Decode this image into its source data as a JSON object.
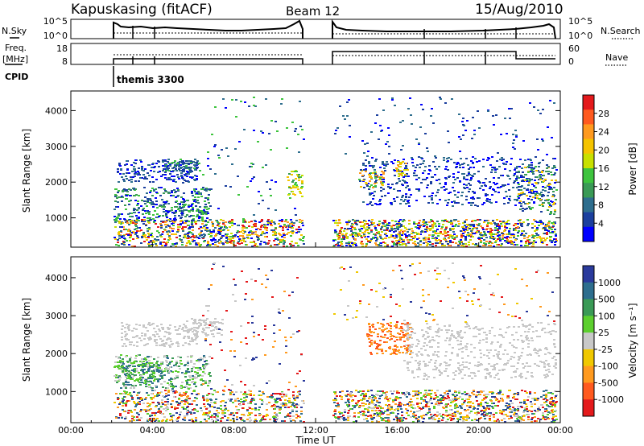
{
  "header": {
    "station": "Kapuskasing (fitACF)",
    "beam": "Beam 12",
    "date": "15/Aug/2010"
  },
  "panel_labels": {
    "nsky": "N.Sky",
    "freq_line1": "Freq.",
    "freq_line2": "[MHz]",
    "cpid": "CPID",
    "nsearch": "N.Search",
    "nave": "Nave",
    "cpid_value": "themis 3300"
  },
  "colorbars": {
    "power": {
      "label": "Power [dB]",
      "ticks": [
        "28",
        "24",
        "20",
        "16",
        "12",
        "8",
        "4"
      ],
      "colors": [
        "#e41a1c",
        "#ff5a1f",
        "#ff9a1f",
        "#f5c400",
        "#c8e000",
        "#3ec43e",
        "#3a9a56",
        "#2e6e8e",
        "#1b3f9e",
        "#0000ff"
      ]
    },
    "velocity": {
      "label": "Velocity [m s⁻¹]",
      "ticks": [
        "1000",
        "500",
        "100",
        "25",
        "-25",
        "-100",
        "-500",
        "-1000"
      ],
      "colors": [
        "#2a3a9c",
        "#2e6e8e",
        "#3a9a56",
        "#5ccf2e",
        "#c8c8c8",
        "#f0c800",
        "#ff9a1f",
        "#ff5a1f",
        "#e41a1c"
      ]
    }
  },
  "chart_data": [
    {
      "type": "line",
      "title": "N.Sky / N.Search",
      "x_range_hours": [
        0,
        24
      ],
      "y_tick_labels_left": [
        "10^5",
        "10^0"
      ],
      "y_tick_labels_right": [
        "10^5",
        "10^0"
      ],
      "gaps": [
        [
          0,
          2.0
        ],
        [
          11.5,
          12.9
        ]
      ]
    },
    {
      "type": "line",
      "title": "Freq. / Nave",
      "x_range_hours": [
        0,
        24
      ],
      "y_ticks_left": [
        "18",
        "8"
      ],
      "y_ticks_right": [
        "60",
        "0"
      ],
      "cpid_change_hour": 2.0
    },
    {
      "type": "heatmap",
      "title": "Power",
      "ylabel": "Slant Range [km]",
      "yticks": [
        1000,
        2000,
        3000,
        4000
      ],
      "ylim": [
        180,
        4550
      ],
      "xlim": [
        0,
        24
      ],
      "colorbar": "Power [dB]"
    },
    {
      "type": "heatmap",
      "title": "Velocity",
      "ylabel": "Slant Range [km]",
      "yticks": [
        1000,
        2000,
        3000,
        4000
      ],
      "ylim": [
        180,
        4550
      ],
      "xlim": [
        0,
        24
      ],
      "colorbar": "Velocity [m s⁻¹]"
    }
  ],
  "xaxis": {
    "label": "Time UT",
    "ticks": [
      "00:00",
      "04:00",
      "08:00",
      "12:00",
      "16:00",
      "20:00",
      "00:00"
    ]
  }
}
